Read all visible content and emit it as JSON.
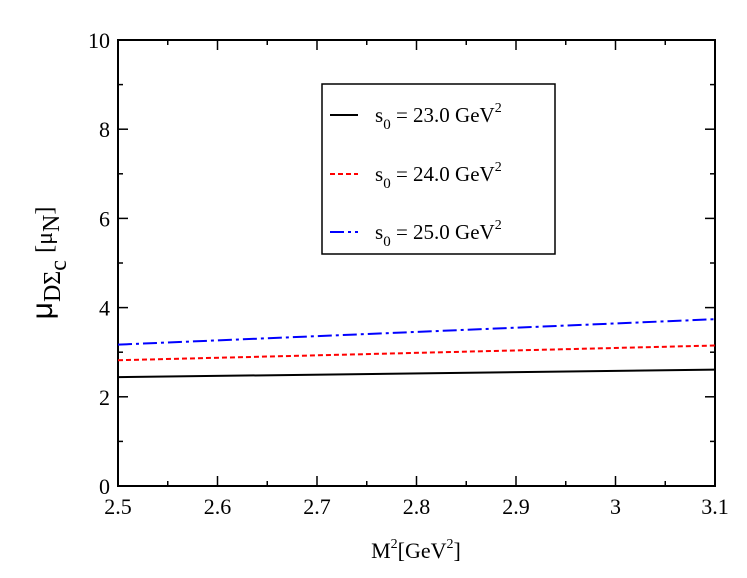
{
  "chart_data": {
    "type": "line",
    "title": "",
    "xlabel": {
      "base": "M",
      "sup": "2",
      "unit_open": "[GeV",
      "unit_sup": "2",
      "unit_close": "]"
    },
    "ylabel": {
      "mu": "μ",
      "sub": "DΣ",
      "subsub": "c",
      "unit_open": "[μ",
      "unit_sub": "N",
      "unit_close": "]"
    },
    "xlim": [
      2.5,
      3.1
    ],
    "ylim": [
      0,
      10
    ],
    "x_ticks": [
      2.5,
      2.6,
      2.7,
      2.8,
      2.9,
      3.0,
      3.1
    ],
    "x_tick_labels": [
      "2.5",
      "2.6",
      "2.7",
      "2.8",
      "2.9",
      "3",
      "3.1"
    ],
    "y_ticks": [
      0,
      2,
      4,
      6,
      8,
      10
    ],
    "y_tick_labels": [
      "0",
      "2",
      "4",
      "6",
      "8",
      "10"
    ],
    "grid": false,
    "legend_position": "top-right",
    "series": [
      {
        "name": "s0 = 23.0 GeV2",
        "label_parts": {
          "s": "s",
          "sub": "0",
          "text": " = 23.0 GeV",
          "sup": "2"
        },
        "color": "#000000",
        "style": "solid",
        "x": [
          2.5,
          3.1
        ],
        "values": [
          2.44,
          2.61
        ]
      },
      {
        "name": "s0 = 24.0 GeV2",
        "label_parts": {
          "s": "s",
          "sub": "0",
          "text": " = 24.0 GeV",
          "sup": "2"
        },
        "color": "#ff0000",
        "style": "dashed",
        "x": [
          2.5,
          3.1
        ],
        "values": [
          2.82,
          3.15
        ]
      },
      {
        "name": "s0 = 25.0 GeV2",
        "label_parts": {
          "s": "s",
          "sub": "0",
          "text": " = 25.0 GeV",
          "sup": "2"
        },
        "color": "#0000ff",
        "style": "dashdot",
        "x": [
          2.5,
          3.1
        ],
        "values": [
          3.17,
          3.74
        ]
      }
    ]
  }
}
